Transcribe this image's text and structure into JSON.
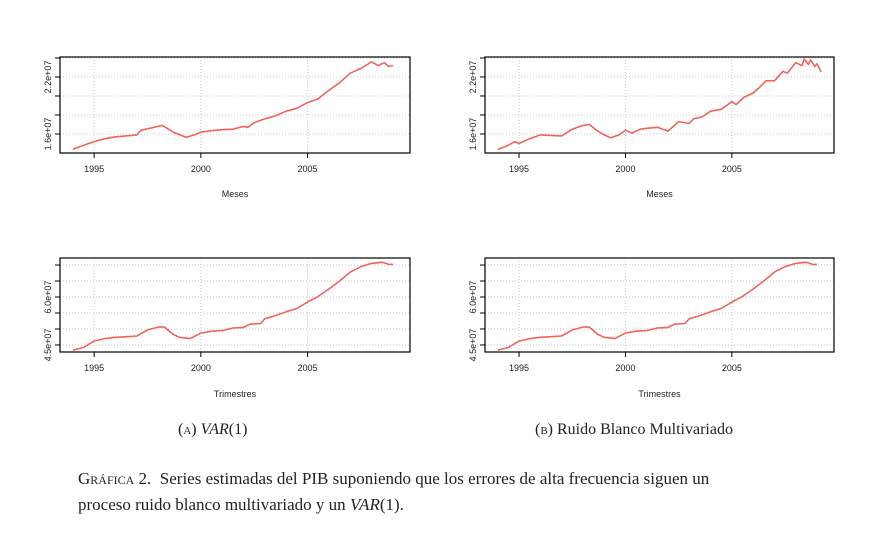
{
  "chart_data": [
    {
      "type": "line",
      "panel": "A",
      "xlabel": "Meses",
      "ylabel": "",
      "xticks": [
        "1995",
        "2000",
        "2005"
      ],
      "yticks": [
        "1.6e+07",
        "2.2e+07"
      ],
      "ylim": [
        14000000,
        24100000
      ],
      "xlim": [
        1993.4,
        2009.8
      ],
      "color": "#f0645a",
      "x": [
        1994.0,
        1994.5,
        1995.0,
        1995.5,
        1996.0,
        1996.5,
        1997.0,
        1997.2,
        1997.6,
        1998.2,
        1998.7,
        1999.3,
        1999.7,
        2000.0,
        2000.5,
        2001.0,
        2001.5,
        2002.0,
        2002.2,
        2002.5,
        2003.0,
        2003.5,
        2004.0,
        2004.5,
        2005.0,
        2005.5,
        2006.0,
        2006.5,
        2007.0,
        2007.5,
        2008.0,
        2008.3,
        2008.6,
        2008.8,
        2009.0
      ],
      "y": [
        14400000,
        14800000,
        15200000,
        15500000,
        15700000,
        15800000,
        15900000,
        16400000,
        16600000,
        16900000,
        16200000,
        15650000,
        15900000,
        16200000,
        16350000,
        16450000,
        16500000,
        16800000,
        16700000,
        17200000,
        17600000,
        17900000,
        18400000,
        18700000,
        19300000,
        19700000,
        20600000,
        21400000,
        22400000,
        22900000,
        23600000,
        23200000,
        23500000,
        23100000,
        23200000
      ]
    },
    {
      "type": "line",
      "panel": "B",
      "xlabel": "Meses",
      "ylabel": "",
      "xticks": [
        "1995",
        "2000",
        "2005"
      ],
      "yticks": [
        "1.6e+07",
        "2.2e+07"
      ],
      "ylim": [
        14000000,
        24100000
      ],
      "xlim": [
        1993.4,
        2009.8
      ],
      "color": "#f0645a",
      "x": [
        1994.0,
        1994.4,
        1994.8,
        1995.0,
        1995.5,
        1996.0,
        1996.5,
        1997.0,
        1997.5,
        1998.0,
        1998.3,
        1998.7,
        1999.0,
        1999.3,
        1999.7,
        2000.0,
        2000.3,
        2000.7,
        2001.0,
        2001.5,
        2002.0,
        2002.5,
        2003.0,
        2003.2,
        2003.6,
        2004.0,
        2004.5,
        2005.0,
        2005.2,
        2005.6,
        2006.0,
        2006.3,
        2006.6,
        2007.0,
        2007.4,
        2007.6,
        2008.0,
        2008.3,
        2008.4,
        2008.6,
        2008.7,
        2008.9,
        2009.0,
        2009.2
      ],
      "y": [
        14400000,
        14700000,
        15200000,
        15000000,
        15500000,
        15900000,
        15850000,
        15800000,
        16500000,
        16900000,
        17000000,
        16300000,
        15900000,
        15600000,
        15900000,
        16400000,
        16100000,
        16500000,
        16600000,
        16700000,
        16300000,
        17300000,
        17100000,
        17600000,
        17800000,
        18400000,
        18600000,
        19400000,
        19100000,
        19900000,
        20300000,
        20900000,
        21600000,
        21600000,
        22600000,
        22400000,
        23500000,
        23200000,
        23900000,
        23300000,
        23800000,
        23100000,
        23400000,
        22500000
      ]
    },
    {
      "type": "line",
      "panel": "A",
      "xlabel": "Trimestres",
      "ylabel": "",
      "xticks": [
        "1995",
        "2000",
        "2005"
      ],
      "yticks": [
        "4.5e+07",
        "6.0e+07"
      ],
      "ylim": [
        42800000,
        72200000
      ],
      "xlim": [
        1993.4,
        2009.8
      ],
      "color": "#f0645a",
      "x": [
        1994.0,
        1994.5,
        1995.0,
        1995.5,
        1996.0,
        1996.5,
        1997.0,
        1997.5,
        1998.0,
        1998.3,
        1998.7,
        1999.0,
        1999.5,
        2000.0,
        2000.5,
        2001.0,
        2001.5,
        2002.0,
        2002.3,
        2002.8,
        2003.0,
        2003.5,
        2004.0,
        2004.5,
        2005.0,
        2005.5,
        2006.0,
        2006.5,
        2007.0,
        2007.5,
        2008.0,
        2008.5,
        2008.8,
        2009.0
      ],
      "y": [
        43400000,
        44200000,
        46200000,
        47000000,
        47400000,
        47600000,
        47800000,
        49700000,
        50600000,
        50600000,
        48300000,
        47400000,
        47000000,
        48700000,
        49300000,
        49500000,
        50300000,
        50500000,
        51500000,
        51700000,
        53200000,
        54200000,
        55400000,
        56400000,
        58400000,
        60200000,
        62500000,
        65000000,
        67800000,
        69500000,
        70500000,
        70900000,
        70200000,
        70200000
      ]
    },
    {
      "type": "line",
      "panel": "B",
      "xlabel": "Trimestres",
      "ylabel": "",
      "xticks": [
        "1995",
        "2000",
        "2005"
      ],
      "yticks": [
        "4.5e+07",
        "6.0e+07"
      ],
      "ylim": [
        42800000,
        72200000
      ],
      "xlim": [
        1993.4,
        2009.8
      ],
      "color": "#f0645a",
      "x": [
        1994.0,
        1994.5,
        1995.0,
        1995.5,
        1996.0,
        1996.5,
        1997.0,
        1997.5,
        1998.0,
        1998.3,
        1998.7,
        1999.0,
        1999.5,
        2000.0,
        2000.5,
        2001.0,
        2001.5,
        2002.0,
        2002.3,
        2002.8,
        2003.0,
        2003.5,
        2004.0,
        2004.5,
        2005.0,
        2005.5,
        2006.0,
        2006.5,
        2007.0,
        2007.5,
        2008.0,
        2008.5,
        2008.8,
        2009.0
      ],
      "y": [
        43400000,
        44200000,
        46200000,
        47000000,
        47400000,
        47600000,
        47800000,
        49700000,
        50600000,
        50600000,
        48300000,
        47400000,
        47000000,
        48700000,
        49300000,
        49500000,
        50300000,
        50500000,
        51500000,
        51700000,
        53200000,
        54200000,
        55400000,
        56400000,
        58400000,
        60200000,
        62500000,
        65000000,
        67800000,
        69500000,
        70500000,
        70900000,
        70200000,
        70200000
      ]
    }
  ],
  "subcaptions": {
    "a_label": "(a)",
    "a_text": "VAR",
    "a_arg": "(1)",
    "b_label": "(b)",
    "b_text": "Ruido Blanco Multivariado"
  },
  "caption": {
    "label": "Gráfica 2.",
    "line1": "Series estimadas del PIB suponiendo que los errores de alta frecuencia siguen un",
    "line2_pre": "proceso ruido blanco multivariado y un ",
    "line2_var": "VAR",
    "line2_post": "(1)."
  }
}
